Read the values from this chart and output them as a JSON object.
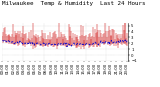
{
  "title": "Milwaukee  Temp & Humidity  Last 24 Hours",
  "bg_color": "#ffffff",
  "plot_bg_color": "#ffffff",
  "bar_color": "#cc0000",
  "line_color": "#0000cc",
  "grid_color": "#bbbbbb",
  "n_points": 144,
  "y_min": -1,
  "y_max": 5.5,
  "y_ticks": [
    5,
    4,
    3,
    2,
    1,
    0,
    -1
  ],
  "title_fontsize": 4.2,
  "tick_fontsize": 2.8,
  "seed": 42
}
